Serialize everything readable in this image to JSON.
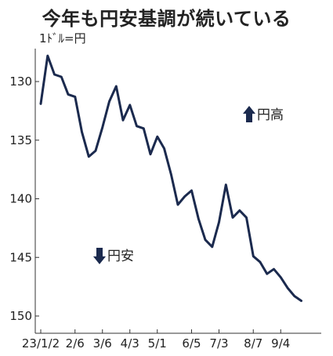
{
  "chart_data": {
    "type": "line",
    "title": "今年も円安基調が続いている",
    "unit_label": "1ﾄﾞﾙ=円",
    "y_inverted": true,
    "ylim": [
      127,
      151
    ],
    "yticks": [
      130,
      135,
      140,
      145,
      150
    ],
    "x_tick_labels": [
      "23/1/2",
      "2/6",
      "3/6",
      "4/3",
      "5/1",
      "6/5",
      "7/3",
      "8/7",
      "9/4"
    ],
    "x_tick_positions": [
      0,
      5,
      9,
      13,
      17,
      22,
      26,
      31,
      35
    ],
    "x_count": 41,
    "annotations": [
      {
        "label": "円高",
        "arrow": "up"
      },
      {
        "label": "円安",
        "arrow": "down"
      }
    ],
    "line_color": "#1b2a4e",
    "series": [
      {
        "values": [
          131.9,
          127.8,
          129.4,
          129.6,
          131.1,
          131.3,
          134.3,
          136.4,
          135.9,
          133.9,
          131.7,
          130.4,
          133.3,
          132.0,
          133.8,
          134.0,
          136.2,
          134.7,
          135.7,
          137.9,
          140.5,
          139.8,
          139.3,
          141.7,
          143.5,
          144.1,
          142.0,
          138.8,
          141.6,
          141.0,
          141.6,
          144.9,
          145.4,
          146.4,
          146.0,
          146.7,
          147.6,
          148.3,
          148.7
        ]
      }
    ]
  }
}
